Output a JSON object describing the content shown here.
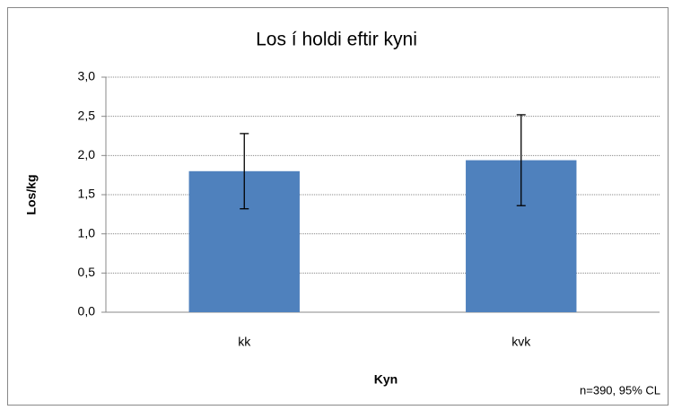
{
  "chart_data": {
    "type": "bar",
    "title": "Los í holdi eftir kyni",
    "categories": [
      "kk",
      "kvk"
    ],
    "values": [
      1.8,
      1.94
    ],
    "errors": [
      0.48,
      0.58
    ],
    "color": "#4f81bd",
    "xlabel": "Kyn",
    "ylabel": "Los/kg",
    "note": "n=390, 95% CL",
    "ylim": [
      0,
      3
    ],
    "yticks": [
      {
        "value": 0,
        "label": "0,0"
      },
      {
        "value": 0.5,
        "label": "0,5"
      },
      {
        "value": 1,
        "label": "1,0"
      },
      {
        "value": 1.5,
        "label": "1,5"
      },
      {
        "value": 2,
        "label": "2,0"
      },
      {
        "value": 2.5,
        "label": "2,5"
      },
      {
        "value": 3,
        "label": "3,0"
      }
    ],
    "grid": true
  }
}
